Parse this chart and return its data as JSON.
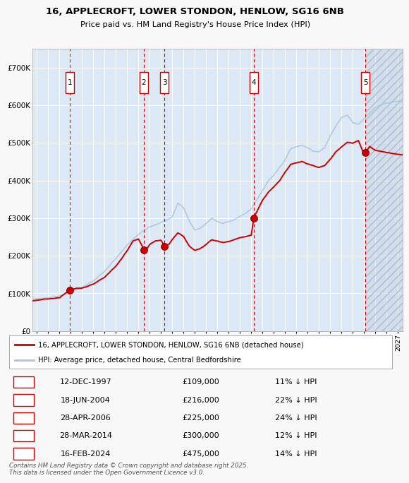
{
  "title_line1": "16, APPLECROFT, LOWER STONDON, HENLOW, SG16 6NB",
  "title_line2": "Price paid vs. HM Land Registry's House Price Index (HPI)",
  "ylim": [
    0,
    750000
  ],
  "yticks": [
    0,
    100000,
    200000,
    300000,
    400000,
    500000,
    600000,
    700000
  ],
  "ytick_labels": [
    "£0",
    "£100K",
    "£200K",
    "£300K",
    "£400K",
    "£500K",
    "£600K",
    "£700K"
  ],
  "xlim_start": 1994.6,
  "xlim_end": 2027.4,
  "fig_bg_color": "#f8f8f8",
  "plot_bg_color": "#dce8f5",
  "grid_color": "#ffffff",
  "hpi_line_color": "#a8c4e0",
  "price_line_color": "#cc0000",
  "sale_marker_color": "#cc0000",
  "sale_marker_size": 7,
  "vertical_line_color": "#cc0000",
  "transactions": [
    {
      "num": 1,
      "date_dec": 1997.95,
      "price": 109000,
      "label": "1"
    },
    {
      "num": 2,
      "date_dec": 2004.46,
      "price": 216000,
      "label": "2"
    },
    {
      "num": 3,
      "date_dec": 2006.32,
      "price": 225000,
      "label": "3"
    },
    {
      "num": 4,
      "date_dec": 2014.24,
      "price": 300000,
      "label": "4"
    },
    {
      "num": 5,
      "date_dec": 2024.12,
      "price": 475000,
      "label": "5"
    }
  ],
  "table_rows": [
    {
      "num": 1,
      "date": "12-DEC-1997",
      "price": "£109,000",
      "hpi": "11% ↓ HPI"
    },
    {
      "num": 2,
      "date": "18-JUN-2004",
      "price": "£216,000",
      "hpi": "22% ↓ HPI"
    },
    {
      "num": 3,
      "date": "28-APR-2006",
      "price": "£225,000",
      "hpi": "24% ↓ HPI"
    },
    {
      "num": 4,
      "date": "28-MAR-2014",
      "price": "£300,000",
      "hpi": "12% ↓ HPI"
    },
    {
      "num": 5,
      "date": "16-FEB-2024",
      "price": "£475,000",
      "hpi": "14% ↓ HPI"
    }
  ],
  "legend_entries": [
    "16, APPLECROFT, LOWER STONDON, HENLOW, SG16 6NB (detached house)",
    "HPI: Average price, detached house, Central Bedfordshire"
  ],
  "footer_text": "Contains HM Land Registry data © Crown copyright and database right 2025.\nThis data is licensed under the Open Government Licence v3.0.",
  "last_sale_shade_start": 2024.12,
  "last_sale_shade_end": 2027.4
}
